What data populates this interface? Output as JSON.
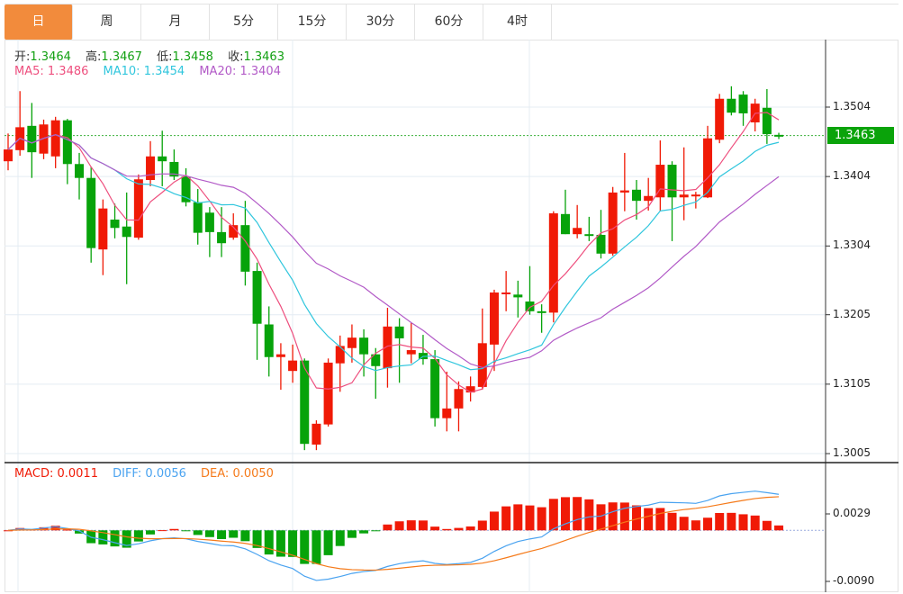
{
  "tabs": [
    "日",
    "周",
    "月",
    "5分",
    "15分",
    "30分",
    "60分",
    "4时"
  ],
  "active_tab": 0,
  "ohlc_header": {
    "open_label": "开:",
    "open": "1.3464",
    "high_label": "高:",
    "high": "1.3467",
    "low_label": "低:",
    "low": "1.3458",
    "close_label": "收:",
    "close": "1.3463"
  },
  "ma_header": {
    "ma5": "MA5: 1.3486",
    "ma10": "MA10: 1.3454",
    "ma20": "MA20: 1.3404"
  },
  "macd_header": {
    "macd": "MACD: 0.0011",
    "diff": "DIFF: 0.0056",
    "dea": "DEA: 0.0050"
  },
  "price_axis": [
    "1.3504",
    "1.3404",
    "1.3304",
    "1.3205",
    "1.3105",
    "1.3005"
  ],
  "macd_axis": [
    "0.0029",
    "-0.0090"
  ],
  "current_price": "1.3463",
  "colors": {
    "up": "#f01a06",
    "down": "#07a30a",
    "ma5": "#ee4f7e",
    "ma10": "#30c6dd",
    "ma20": "#b25ac7",
    "diff": "#4aa3f0",
    "dea": "#f57a1a",
    "accent": "#f28b3c"
  },
  "chart_data": {
    "type": "candlestick",
    "price_range": [
      1.3005,
      1.3504
    ],
    "macd_range": [
      -0.009,
      0.0029
    ],
    "ohlc": [
      [
        1.3426,
        1.3466,
        1.3413,
        1.3443
      ],
      [
        1.3442,
        1.3527,
        1.3434,
        1.3475
      ],
      [
        1.3477,
        1.351,
        1.3402,
        1.3439
      ],
      [
        1.3437,
        1.3486,
        1.3429,
        1.3479
      ],
      [
        1.3433,
        1.349,
        1.3416,
        1.3485
      ],
      [
        1.3485,
        1.3487,
        1.3393,
        1.3422
      ],
      [
        1.3422,
        1.3438,
        1.3371,
        1.3402
      ],
      [
        1.3402,
        1.3418,
        1.328,
        1.3301
      ],
      [
        1.3299,
        1.3371,
        1.3262,
        1.3358
      ],
      [
        1.3342,
        1.3365,
        1.3315,
        1.333
      ],
      [
        1.3332,
        1.3381,
        1.3249,
        1.3317
      ],
      [
        1.3316,
        1.3407,
        1.3313,
        1.34
      ],
      [
        1.3399,
        1.3455,
        1.339,
        1.3433
      ],
      [
        1.3433,
        1.347,
        1.339,
        1.3426
      ],
      [
        1.3425,
        1.3443,
        1.3399,
        1.3404
      ],
      [
        1.3404,
        1.3416,
        1.3361,
        1.3367
      ],
      [
        1.3367,
        1.3386,
        1.3306,
        1.3323
      ],
      [
        1.3352,
        1.336,
        1.3288,
        1.3324
      ],
      [
        1.3324,
        1.336,
        1.3288,
        1.3308
      ],
      [
        1.3316,
        1.3351,
        1.3313,
        1.3334
      ],
      [
        1.3334,
        1.3369,
        1.3247,
        1.3267
      ],
      [
        1.3268,
        1.328,
        1.314,
        1.3192
      ],
      [
        1.3191,
        1.3217,
        1.3116,
        1.3144
      ],
      [
        1.3144,
        1.3164,
        1.3097,
        1.3148
      ],
      [
        1.3124,
        1.3162,
        1.3107,
        1.3139
      ],
      [
        1.3139,
        1.3142,
        1.301,
        1.3019
      ],
      [
        1.3018,
        1.3053,
        1.301,
        1.3048
      ],
      [
        1.3047,
        1.3142,
        1.3044,
        1.3136
      ],
      [
        1.3135,
        1.3175,
        1.3094,
        1.316
      ],
      [
        1.3157,
        1.3191,
        1.3136,
        1.3172
      ],
      [
        1.3172,
        1.3184,
        1.3116,
        1.3148
      ],
      [
        1.3148,
        1.3157,
        1.3084,
        1.3131
      ],
      [
        1.3128,
        1.3215,
        1.31,
        1.3188
      ],
      [
        1.3188,
        1.32,
        1.3107,
        1.3171
      ],
      [
        1.3148,
        1.3193,
        1.3135,
        1.3154
      ],
      [
        1.315,
        1.3176,
        1.3133,
        1.3141
      ],
      [
        1.3141,
        1.3154,
        1.3044,
        1.3056
      ],
      [
        1.3056,
        1.3123,
        1.3037,
        1.307
      ],
      [
        1.307,
        1.3109,
        1.3037,
        1.3098
      ],
      [
        1.3093,
        1.3116,
        1.308,
        1.3102
      ],
      [
        1.3101,
        1.3214,
        1.3097,
        1.3164
      ],
      [
        1.3162,
        1.3241,
        1.3124,
        1.3237
      ],
      [
        1.3236,
        1.3268,
        1.321,
        1.3237
      ],
      [
        1.3234,
        1.3254,
        1.3201,
        1.323
      ],
      [
        1.3224,
        1.3275,
        1.3205,
        1.321
      ],
      [
        1.321,
        1.322,
        1.3179,
        1.3208
      ],
      [
        1.3208,
        1.3354,
        1.3194,
        1.3351
      ],
      [
        1.335,
        1.3385,
        1.3321,
        1.3321
      ],
      [
        1.3321,
        1.3363,
        1.3315,
        1.333
      ],
      [
        1.3321,
        1.3346,
        1.3311,
        1.3319
      ],
      [
        1.332,
        1.3356,
        1.3286,
        1.3293
      ],
      [
        1.3293,
        1.3389,
        1.329,
        1.3381
      ],
      [
        1.3381,
        1.3438,
        1.3354,
        1.3384
      ],
      [
        1.3385,
        1.3399,
        1.3342,
        1.3369
      ],
      [
        1.3369,
        1.3402,
        1.3355,
        1.3376
      ],
      [
        1.3374,
        1.3456,
        1.3354,
        1.3421
      ],
      [
        1.3421,
        1.3426,
        1.3311,
        1.3374
      ],
      [
        1.3374,
        1.3446,
        1.3341,
        1.3378
      ],
      [
        1.3376,
        1.3382,
        1.3358,
        1.3378
      ],
      [
        1.3374,
        1.3477,
        1.3373,
        1.3459
      ],
      [
        1.3457,
        1.3523,
        1.3452,
        1.3516
      ],
      [
        1.3516,
        1.3534,
        1.3492,
        1.3496
      ],
      [
        1.3522,
        1.3527,
        1.3477,
        1.3495
      ],
      [
        1.3482,
        1.3516,
        1.3469,
        1.3509
      ],
      [
        1.3503,
        1.353,
        1.3451,
        1.3465
      ],
      [
        1.3464,
        1.3467,
        1.3458,
        1.3463
      ]
    ]
  }
}
